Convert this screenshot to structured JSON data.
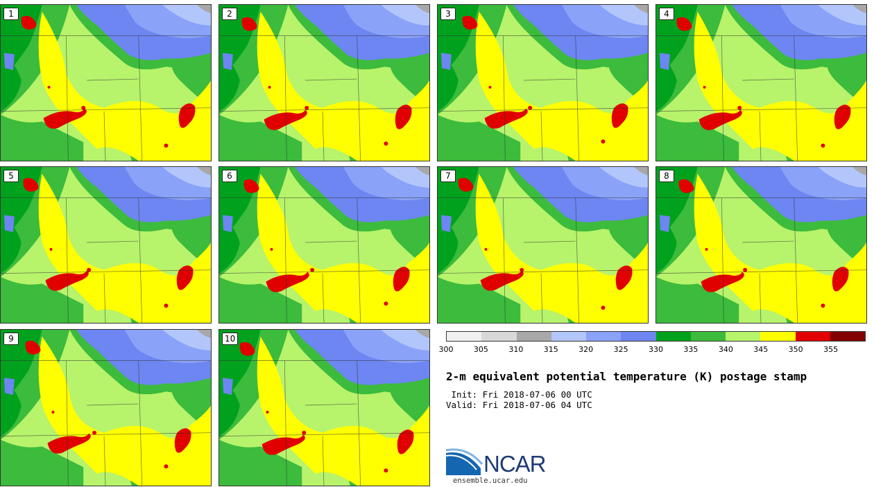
{
  "title": "2-m equivalent potential temperature (K) postage stamp",
  "init_text": " Init: Fri 2018-07-06 00 UTC",
  "valid_text": "Valid: Fri 2018-07-06 04 UTC",
  "logo": {
    "text": "NCAR",
    "url": "ensemble.ucar.edu"
  },
  "members": [
    {
      "label": "1"
    },
    {
      "label": "2"
    },
    {
      "label": "3"
    },
    {
      "label": "4"
    },
    {
      "label": "5"
    },
    {
      "label": "6"
    },
    {
      "label": "7"
    },
    {
      "label": "8"
    },
    {
      "label": "9"
    },
    {
      "label": "10"
    }
  ],
  "colorbar": {
    "colors": [
      "#f0f0f0",
      "#d8d8d8",
      "#a8a8a8",
      "#b3c6fb",
      "#8aa2f8",
      "#6d86f2",
      "#00a21d",
      "#3cbb3c",
      "#b7f36b",
      "#ffff00",
      "#e10000",
      "#830000"
    ],
    "tick_labels": [
      "300",
      "305",
      "310",
      "315",
      "320",
      "325",
      "330",
      "335",
      "340",
      "345",
      "350",
      "355"
    ]
  }
}
